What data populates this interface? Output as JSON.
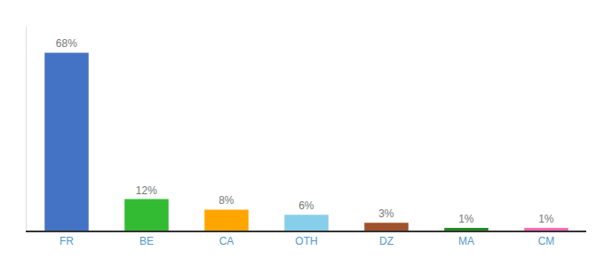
{
  "chart_data": {
    "type": "bar",
    "categories": [
      "FR",
      "BE",
      "CA",
      "OTH",
      "DZ",
      "MA",
      "CM"
    ],
    "values": [
      68,
      12,
      8,
      6,
      3,
      1,
      1
    ],
    "value_labels": [
      "68%",
      "12%",
      "8%",
      "6%",
      "3%",
      "1%",
      "1%"
    ],
    "colors": [
      "#4472C4",
      "#33BB33",
      "#FFA500",
      "#87CEEB",
      "#A0522D",
      "#228B22",
      "#FF69B4"
    ],
    "ylim": [
      0,
      78
    ],
    "grid": false,
    "data_labels": true,
    "tick_labels": "x"
  }
}
